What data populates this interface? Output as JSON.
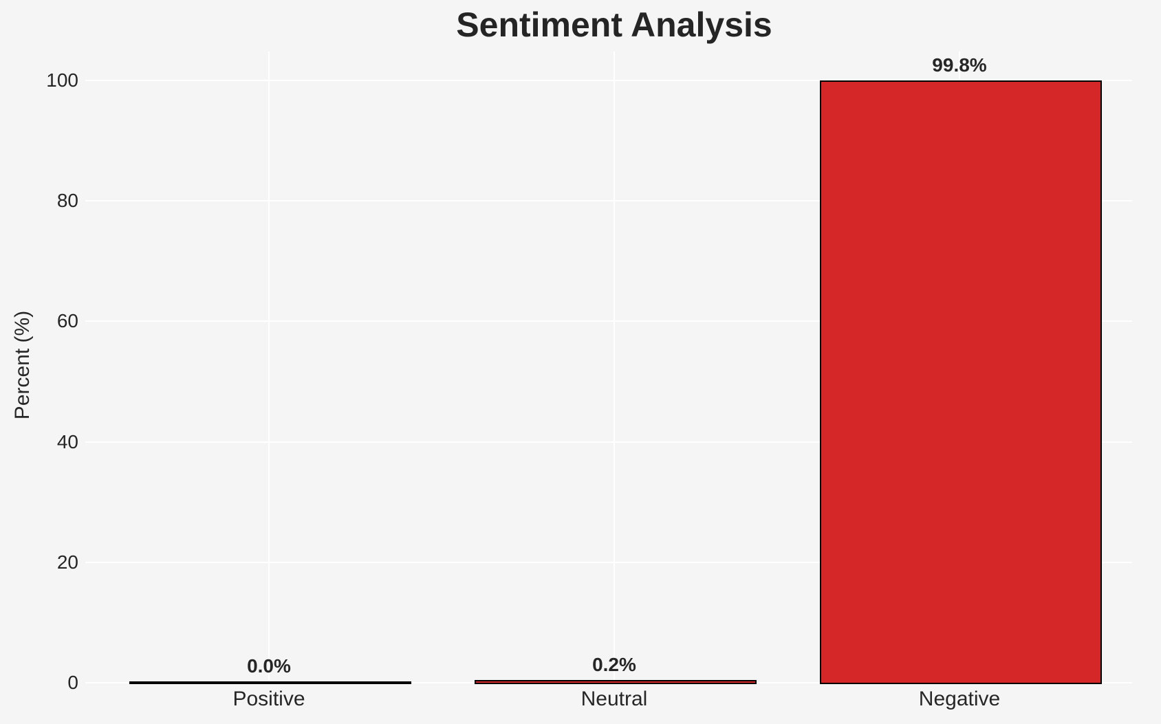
{
  "page": {
    "background": "#f5f5f6"
  },
  "chart_data": {
    "type": "bar",
    "title": "Sentiment Analysis",
    "categories": [
      "Positive",
      "Neutral",
      "Negative"
    ],
    "values": [
      0.0,
      0.2,
      99.8
    ],
    "value_labels": [
      "0.0%",
      "0.2%",
      "99.8%"
    ],
    "xlabel": "",
    "ylabel": "Percent (%)",
    "ylim": [
      0,
      105
    ],
    "yticks": [
      0,
      20,
      40,
      60,
      80,
      100
    ],
    "ytick_labels": [
      "0",
      "20",
      "40",
      "60",
      "80",
      "100"
    ],
    "grid": true,
    "legend": false,
    "colors": {
      "bar_fills": [
        "#d62728",
        "#d62728",
        "#d62728"
      ],
      "bar_edge": "#000000",
      "gridline": "#ffffff",
      "background": "#f5f5f6",
      "text": "#262626",
      "title_text": "#252525"
    }
  }
}
